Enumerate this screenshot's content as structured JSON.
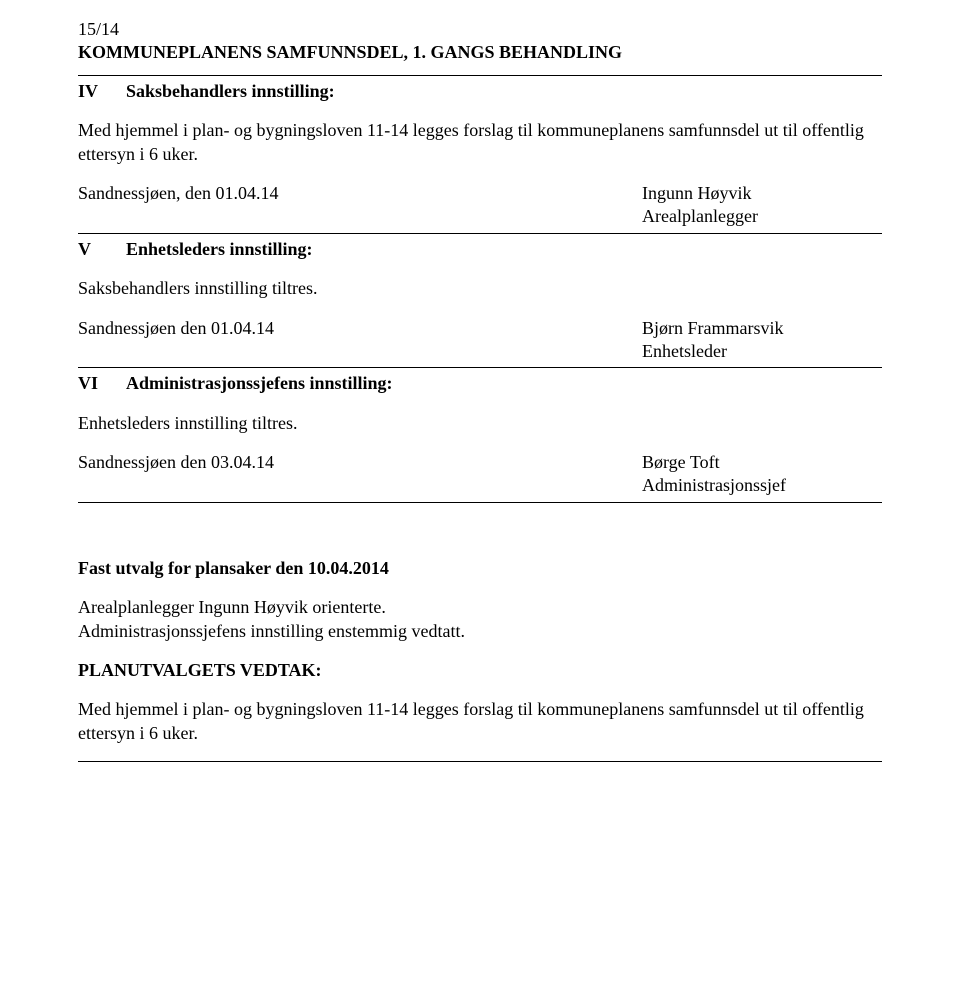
{
  "header": {
    "case_number": "15/14",
    "title_line1": "KOMMUNEPLANENS SAMFUNNSDEL, 1. GANGS BEHANDLING"
  },
  "sectionIV": {
    "roman": "IV",
    "heading": "Saksbehandlers innstilling:",
    "body": "Med hjemmel i plan- og bygningsloven 11-14 legges forslag til kommuneplanens samfunnsdel ut til offentlig ettersyn i 6 uker.",
    "date": "Sandnessjøen, den 01.04.14",
    "signer_name": "Ingunn Høyvik",
    "signer_role": "Arealplanlegger"
  },
  "sectionV": {
    "roman": "V",
    "heading": "Enhetsleders innstilling:",
    "body": "Saksbehandlers innstilling tiltres.",
    "date": "Sandnessjøen den 01.04.14",
    "signer_name": "Bjørn Frammarsvik",
    "signer_role": "Enhetsleder"
  },
  "sectionVI": {
    "roman": "VI",
    "heading": "Administrasjonssjefens innstilling:",
    "body": "Enhetsleders innstilling tiltres.",
    "date": "Sandnessjøen den 03.04.14",
    "signer_name": "Børge Toft",
    "signer_role": "Administrasjonssjef"
  },
  "meeting": {
    "title": "Fast utvalg for plansaker den 10.04.2014",
    "line1": "Arealplanlegger Ingunn Høyvik orienterte.",
    "line2": "Administrasjonssjefens innstilling enstemmig vedtatt."
  },
  "decision": {
    "heading": "PLANUTVALGETS VEDTAK:",
    "body": "Med hjemmel i plan- og bygningsloven 11-14 legges forslag til kommuneplanens samfunnsdel ut til offentlig ettersyn i 6 uker."
  }
}
